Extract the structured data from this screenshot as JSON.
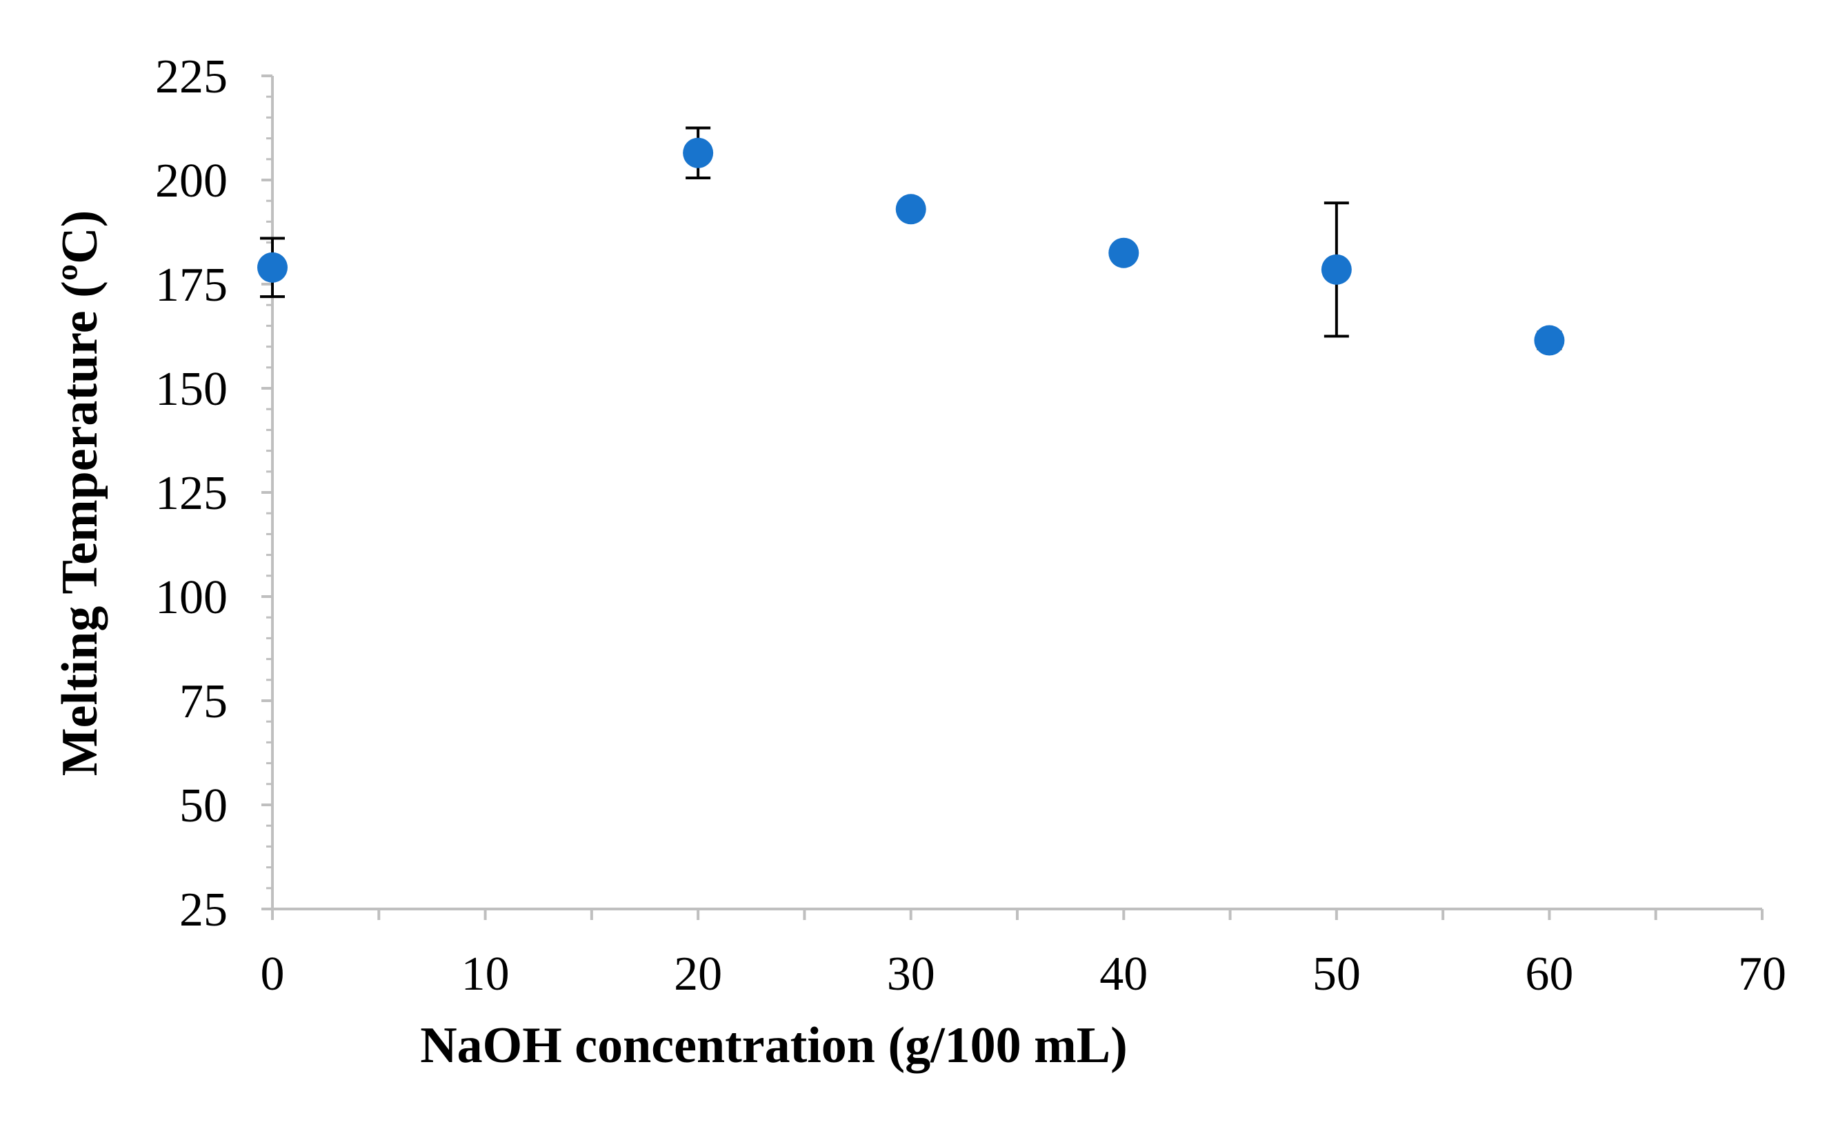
{
  "chart_data": {
    "type": "scatter",
    "title": "",
    "xlabel": "NaOH concentration (g/100 mL)",
    "ylabel": "Melting Temperature (ºC)",
    "xlim": [
      0,
      70
    ],
    "ylim": [
      25,
      225
    ],
    "x_ticks": [
      0,
      10,
      20,
      30,
      40,
      50,
      60,
      70
    ],
    "y_ticks": [
      25,
      50,
      75,
      100,
      125,
      150,
      175,
      200,
      225
    ],
    "x_tick_labels": [
      "0",
      "10",
      "20",
      "30",
      "40",
      "50",
      "60",
      "70"
    ],
    "y_tick_labels": [
      "25",
      "50",
      "75",
      "100",
      "125",
      "150",
      "175",
      "200",
      "225"
    ],
    "grid": false,
    "legend": "none",
    "marker_color": "#1874CD",
    "axis_color": "#BFBFBF",
    "errorbar_color": "#000000",
    "series": [
      {
        "name": "Melting Temperature",
        "x": [
          0,
          20,
          30,
          40,
          50,
          60
        ],
        "y": [
          179,
          206.5,
          193,
          182.5,
          178.5,
          161.5
        ],
        "error": [
          7,
          6,
          1,
          1,
          16,
          2
        ]
      }
    ]
  }
}
